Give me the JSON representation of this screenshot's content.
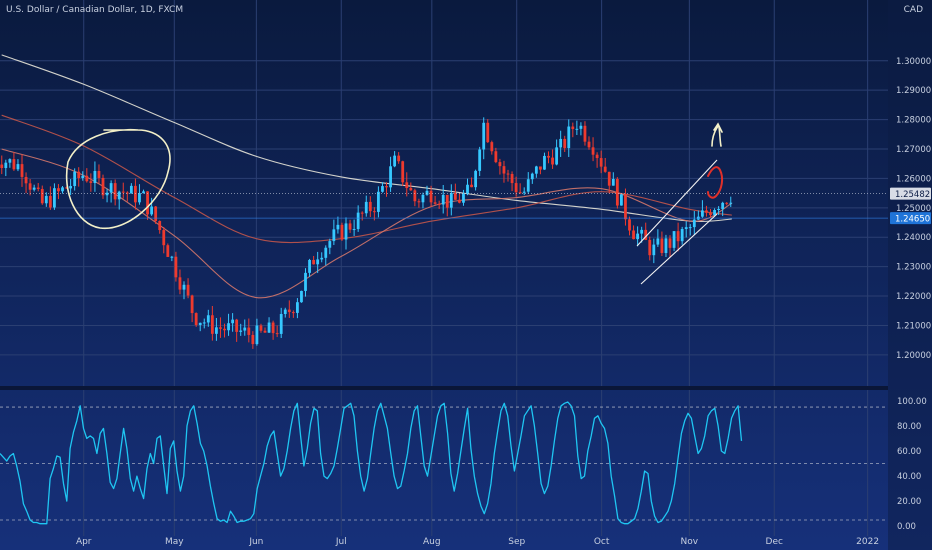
{
  "header": {
    "symbol_title": "U.S. Dollar / Canadian Dollar, 1D, FXCM",
    "currency": "CAD"
  },
  "colors": {
    "background_top": "#0a1a3e",
    "background_bottom": "#16307a",
    "candle_up": "#36c8ff",
    "candle_down": "#ee3a2e",
    "sma_long": "#e8e6d8",
    "sma_mid": "#c2554a",
    "price_label_bg": "#1f74d8",
    "oscillator": "#1fc6f2",
    "annotation": "#f3f0c8"
  },
  "chart_data": [
    {
      "type": "candlestick",
      "title": "U.S. Dollar / Canadian Dollar, 1D, FXCM",
      "y_axis": {
        "label": "CAD",
        "range": [
          1.1935,
          1.3125
        ],
        "ticks": [
          "1.30000",
          "1.29000",
          "1.28000",
          "1.27000",
          "1.26000",
          "1.25000",
          "1.24000",
          "1.23000",
          "1.22000",
          "1.21000",
          "1.20000"
        ],
        "price_labels": [
          {
            "label": "1.25482",
            "value": 1.25482,
            "style": "light"
          },
          {
            "label": "1.24650",
            "value": 1.2465,
            "style": "blue"
          }
        ]
      },
      "x_axis": {
        "ticks": [
          {
            "label": "Apr",
            "date": "2021-04-01"
          },
          {
            "label": "May",
            "date": "2021-05-03"
          },
          {
            "label": "Jun",
            "date": "2021-06-01"
          },
          {
            "label": "Jul",
            "date": "2021-07-01"
          },
          {
            "label": "Aug",
            "date": "2021-08-02"
          },
          {
            "label": "Sep",
            "date": "2021-09-01"
          },
          {
            "label": "Oct",
            "date": "2021-10-01"
          },
          {
            "label": "Nov",
            "date": "2021-11-01"
          },
          {
            "label": "Dec",
            "date": "2021-12-01"
          },
          {
            "label": "2022",
            "date": "2022-01-03"
          }
        ]
      },
      "grid": true,
      "moving_averages": [
        {
          "color": "#e8e6d8",
          "points": [
            [
              "2021-03-03",
              1.302
            ],
            [
              "2021-04-01",
              1.292
            ],
            [
              "2021-05-03",
              1.279
            ],
            [
              "2021-06-01",
              1.2675
            ],
            [
              "2021-07-01",
              1.2605
            ],
            [
              "2021-08-02",
              1.2565
            ],
            [
              "2021-09-01",
              1.2525
            ],
            [
              "2021-10-01",
              1.2495
            ],
            [
              "2021-11-01",
              1.2455
            ],
            [
              "2021-11-16",
              1.2462
            ]
          ]
        },
        {
          "color": "#c2554a",
          "points": [
            [
              "2021-03-03",
              1.2815
            ],
            [
              "2021-04-01",
              1.271
            ],
            [
              "2021-05-03",
              1.2535
            ],
            [
              "2021-06-01",
              1.2395
            ],
            [
              "2021-07-01",
              1.2395
            ],
            [
              "2021-08-02",
              1.2455
            ],
            [
              "2021-09-01",
              1.25
            ],
            [
              "2021-10-01",
              1.2555
            ],
            [
              "2021-11-01",
              1.2495
            ],
            [
              "2021-11-16",
              1.2475
            ]
          ]
        },
        {
          "color": "#d4776a",
          "points": [
            [
              "2021-03-03",
              1.27
            ],
            [
              "2021-04-01",
              1.261
            ],
            [
              "2021-05-03",
              1.2405
            ],
            [
              "2021-06-01",
              1.2195
            ],
            [
              "2021-07-01",
              1.2335
            ],
            [
              "2021-08-02",
              1.2505
            ],
            [
              "2021-09-01",
              1.2535
            ],
            [
              "2021-10-01",
              1.2565
            ],
            [
              "2021-11-01",
              1.2455
            ],
            [
              "2021-11-16",
              1.2515
            ]
          ]
        }
      ],
      "candles_approx_close": [
        [
          "2021-03-03",
          1.2665
        ],
        [
          "2021-03-10",
          1.264
        ],
        [
          "2021-03-17",
          1.251
        ],
        [
          "2021-03-24",
          1.2555
        ],
        [
          "2021-04-01",
          1.2615
        ],
        [
          "2021-04-08",
          1.2575
        ],
        [
          "2021-04-15",
          1.2555
        ],
        [
          "2021-04-22",
          1.2535
        ],
        [
          "2021-04-27",
          1.2445
        ],
        [
          "2021-05-03",
          1.2305
        ],
        [
          "2021-05-10",
          1.2135
        ],
        [
          "2021-05-17",
          1.2095
        ],
        [
          "2021-05-24",
          1.2085
        ],
        [
          "2021-06-01",
          1.2065
        ],
        [
          "2021-06-08",
          1.2085
        ],
        [
          "2021-06-15",
          1.2185
        ],
        [
          "2021-06-22",
          1.2345
        ],
        [
          "2021-06-29",
          1.2405
        ],
        [
          "2021-07-06",
          1.2455
        ],
        [
          "2021-07-13",
          1.2515
        ],
        [
          "2021-07-20",
          1.2655
        ],
        [
          "2021-07-27",
          1.2525
        ],
        [
          "2021-08-02",
          1.2555
        ],
        [
          "2021-08-09",
          1.2515
        ],
        [
          "2021-08-16",
          1.2555
        ],
        [
          "2021-08-20",
          1.2795
        ],
        [
          "2021-08-27",
          1.2625
        ],
        [
          "2021-09-03",
          1.2545
        ],
        [
          "2021-09-10",
          1.2655
        ],
        [
          "2021-09-17",
          1.2705
        ],
        [
          "2021-09-22",
          1.2795
        ],
        [
          "2021-09-28",
          1.2715
        ],
        [
          "2021-10-05",
          1.2575
        ],
        [
          "2021-10-12",
          1.2425
        ],
        [
          "2021-10-19",
          1.2355
        ],
        [
          "2021-10-26",
          1.2385
        ],
        [
          "2021-11-02",
          1.2435
        ],
        [
          "2021-11-09",
          1.2505
        ],
        [
          "2021-11-16",
          1.2548
        ]
      ]
    },
    {
      "type": "line",
      "title": "",
      "y_axis": {
        "ticks": [
          "100.00",
          "80.00",
          "60.00",
          "40.00",
          "20.00",
          "0.00"
        ],
        "range": [
          -3,
          107
        ],
        "bands": [
          95,
          50,
          5
        ]
      },
      "series": [
        {
          "values": [
            58,
            55,
            52,
            56,
            58,
            48,
            36,
            18,
            12,
            5,
            3,
            3,
            2,
            2,
            2,
            38,
            46,
            56,
            55,
            34,
            20,
            62,
            75,
            84,
            96,
            78,
            70,
            72,
            70,
            58,
            74,
            78,
            58,
            35,
            30,
            38,
            58,
            78,
            62,
            38,
            28,
            40,
            30,
            22,
            46,
            58,
            50,
            70,
            72,
            48,
            26,
            62,
            68,
            44,
            28,
            40,
            80,
            92,
            96,
            82,
            66,
            60,
            48,
            32,
            18,
            6,
            4,
            5,
            3,
            12,
            8,
            3,
            4,
            4,
            5,
            6,
            10,
            30,
            40,
            50,
            64,
            72,
            76,
            58,
            40,
            46,
            60,
            78,
            92,
            98,
            72,
            48,
            62,
            82,
            94,
            92,
            58,
            40,
            38,
            42,
            48,
            62,
            78,
            94,
            96,
            98,
            88,
            60,
            40,
            28,
            38,
            58,
            78,
            92,
            98,
            88,
            78,
            58,
            40,
            30,
            32,
            44,
            58,
            78,
            92,
            96,
            72,
            48,
            40,
            56,
            72,
            88,
            96,
            98,
            74,
            42,
            28,
            42,
            60,
            78,
            94,
            62,
            40,
            26,
            16,
            10,
            18,
            34,
            58,
            76,
            92,
            98,
            88,
            64,
            44,
            58,
            72,
            88,
            92,
            96,
            80,
            58,
            34,
            26,
            32,
            48,
            68,
            86,
            96,
            98,
            99,
            96,
            88,
            56,
            38,
            40,
            60,
            72,
            86,
            88,
            82,
            78,
            66,
            40,
            24,
            6,
            3,
            2,
            2,
            4,
            6,
            14,
            28,
            44,
            42,
            20,
            8,
            3,
            4,
            8,
            12,
            20,
            34,
            54,
            74,
            84,
            90,
            86,
            72,
            58,
            62,
            72,
            88,
            92,
            94,
            80,
            60,
            58,
            70,
            86,
            92,
            96,
            68
          ]
        }
      ]
    }
  ]
}
